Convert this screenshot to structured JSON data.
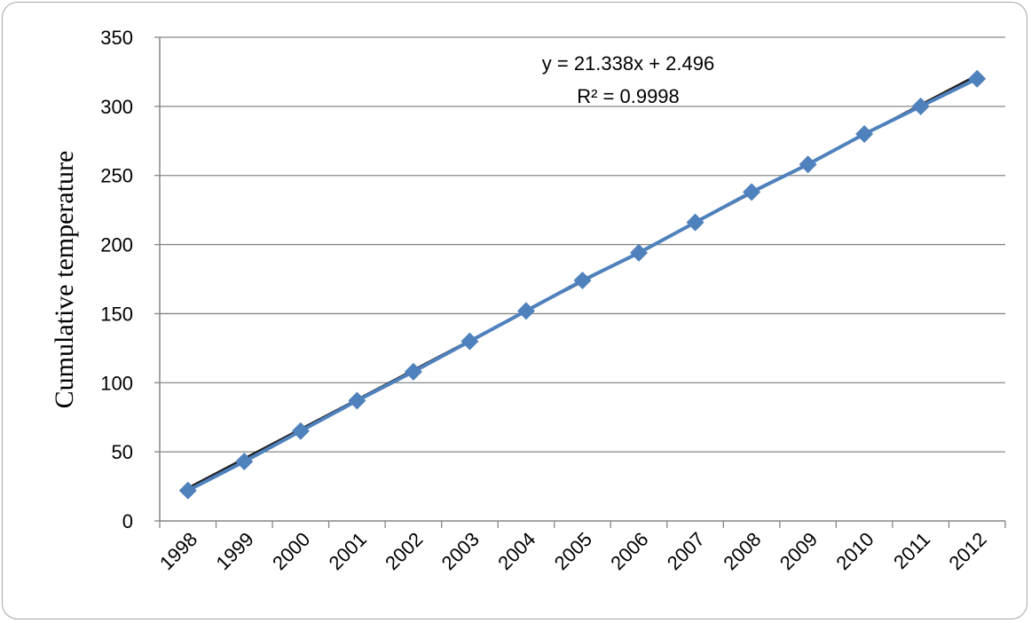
{
  "chart_data": {
    "type": "scatter",
    "title": "",
    "xlabel": "",
    "ylabel": "Cumulative temperature",
    "categories": [
      "1998",
      "1999",
      "2000",
      "2001",
      "2002",
      "2003",
      "2004",
      "2005",
      "2006",
      "2007",
      "2008",
      "2009",
      "2010",
      "2011",
      "2012"
    ],
    "ylim": [
      0,
      350
    ],
    "yticks": [
      "0",
      "50",
      "100",
      "150",
      "200",
      "250",
      "300",
      "350"
    ],
    "grid": true,
    "series": [
      {
        "values": [
          22,
          43,
          65,
          87,
          108,
          130,
          152,
          174,
          194,
          216,
          238,
          258,
          280,
          300,
          320
        ],
        "color": "#4f81bd",
        "marker": "diamond"
      }
    ],
    "trendline": {
      "color": "#1f1f1f",
      "slope": 21.338,
      "intercept": 2.496,
      "equation": "y = 21.338x + 2.496",
      "r_squared": "R² = 0.9998"
    }
  }
}
